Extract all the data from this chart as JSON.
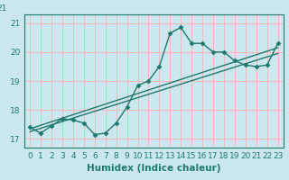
{
  "xlabel": "Humidex (Indice chaleur)",
  "background_color": "#cce8ef",
  "grid_color": "#f5b8b8",
  "line_color": "#1e7a6e",
  "xlim": [
    -0.5,
    23.5
  ],
  "ylim": [
    16.7,
    21.3
  ],
  "yticks": [
    17,
    18,
    19,
    20,
    21
  ],
  "xticks": [
    0,
    1,
    2,
    3,
    4,
    5,
    6,
    7,
    8,
    9,
    10,
    11,
    12,
    13,
    14,
    15,
    16,
    17,
    18,
    19,
    20,
    21,
    22,
    23
  ],
  "main_line_x": [
    0,
    1,
    2,
    3,
    4,
    5,
    6,
    7,
    8,
    9,
    10,
    11,
    12,
    13,
    14,
    15,
    16,
    17,
    18,
    19,
    20,
    21,
    22,
    23
  ],
  "main_line_y": [
    17.4,
    17.2,
    17.45,
    17.7,
    17.65,
    17.55,
    17.15,
    17.2,
    17.55,
    18.1,
    18.85,
    19.0,
    19.5,
    20.65,
    20.85,
    20.3,
    20.3,
    20.0,
    20.0,
    19.7,
    19.55,
    19.5,
    19.55,
    20.3
  ],
  "reg_line1_x": [
    0,
    23
  ],
  "reg_line1_y": [
    17.35,
    20.15
  ],
  "reg_line2_x": [
    0,
    23
  ],
  "reg_line2_y": [
    17.25,
    19.95
  ],
  "font_color": "#1e7a6e",
  "tick_fontsize": 6.5,
  "xlabel_fontsize": 7.5,
  "linewidth": 1.0,
  "markersize": 2.5,
  "top_label": "21"
}
